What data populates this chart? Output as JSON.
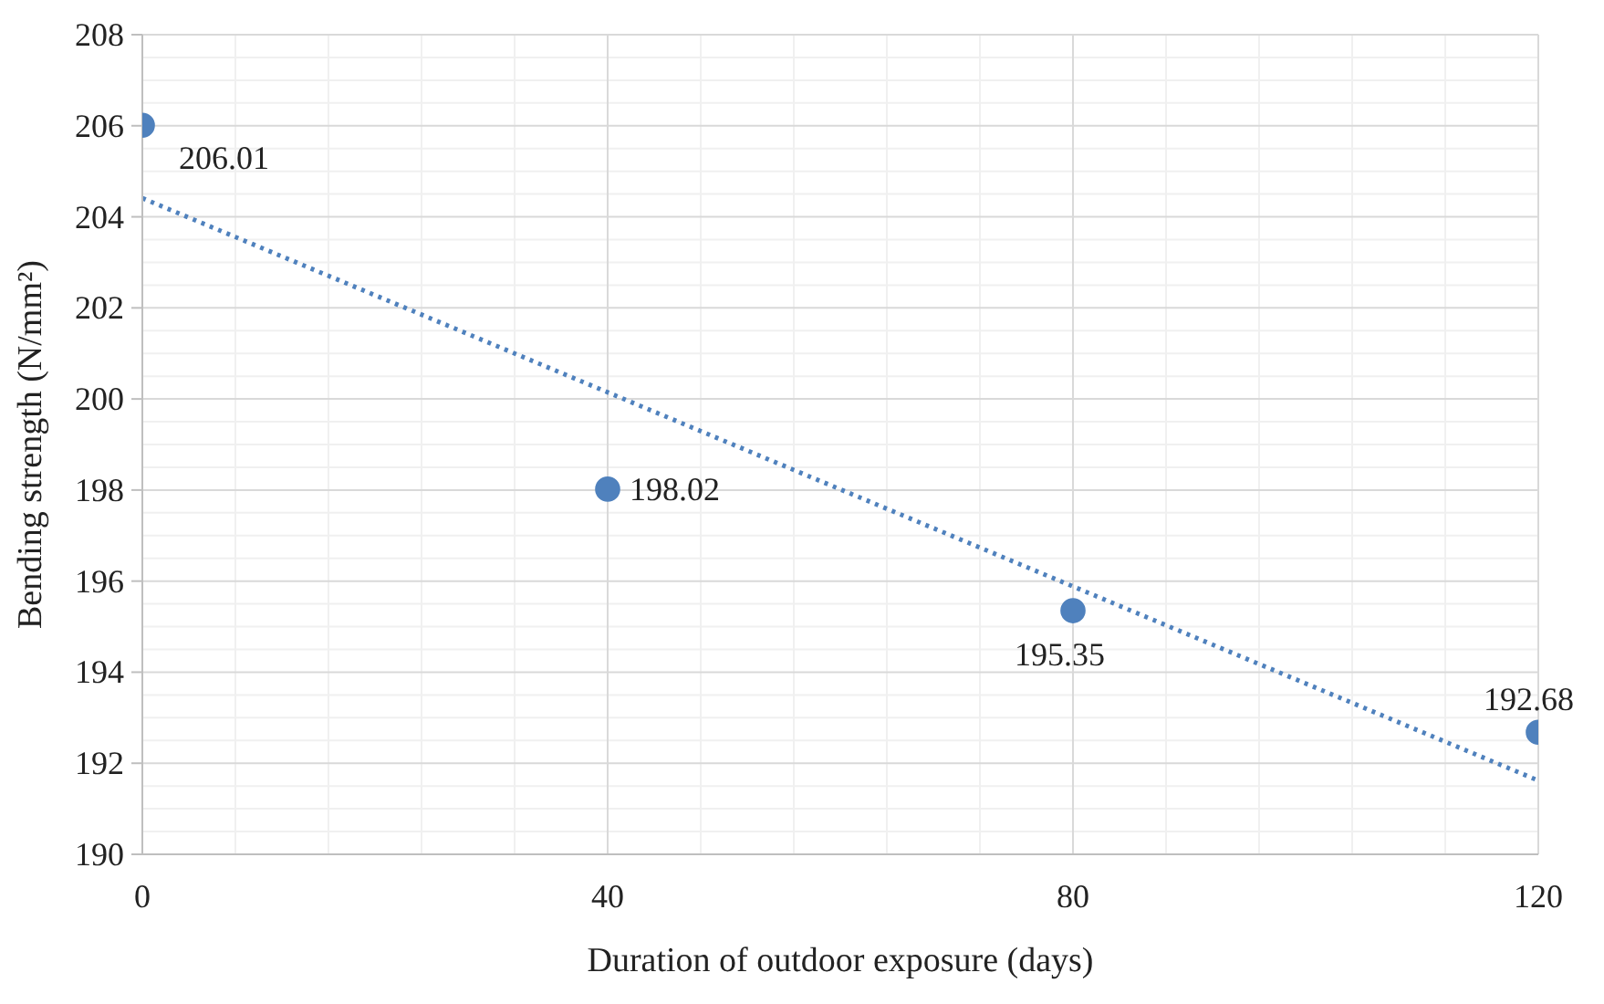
{
  "chart_data": {
    "type": "scatter",
    "xlabel": "Duration of outdoor exposure (days)",
    "ylabel": "Bending strength (N/mm²)",
    "x": [
      0,
      40,
      80,
      120
    ],
    "series": [
      {
        "color": "#4f81bd",
        "values": [
          206.01,
          198.02,
          195.35,
          192.68
        ],
        "value_labels": [
          "206.01",
          "198.02",
          "195.35",
          "192.68"
        ],
        "marker": "circle"
      },
      {
        "type": "line",
        "color": "#4f81bd",
        "x": [
          0,
          120
        ],
        "values": [
          204.41,
          191.62
        ],
        "line_style": "dotted",
        "marker": "none"
      }
    ],
    "xlim": [
      0,
      120
    ],
    "xticks": [
      0,
      {
        "value": 8,
        "label": null
      },
      {
        "value": 16,
        "label": null
      },
      {
        "value": 24,
        "label": null
      },
      {
        "value": 32,
        "label": null
      },
      40,
      {
        "value": 48,
        "label": null
      },
      {
        "value": 56,
        "label": null
      },
      {
        "value": 64,
        "label": null
      },
      {
        "value": 72,
        "label": null
      },
      80,
      {
        "value": 88,
        "label": null
      },
      {
        "value": 96,
        "label": null
      },
      {
        "value": 104,
        "label": null
      },
      {
        "value": 112,
        "label": null
      },
      120
    ],
    "ylim": [
      190,
      208
    ],
    "yticks": [
      190,
      {
        "value": 190.5,
        "label": null
      },
      {
        "value": 191,
        "label": null
      },
      {
        "value": 191.5,
        "label": null
      },
      192,
      {
        "value": 192.5,
        "label": null
      },
      {
        "value": 193,
        "label": null
      },
      {
        "value": 193.5,
        "label": null
      },
      194,
      {
        "value": 194.5,
        "label": null
      },
      {
        "value": 195,
        "label": null
      },
      {
        "value": 195.5,
        "label": null
      },
      196,
      {
        "value": 196.5,
        "label": null
      },
      {
        "value": 197,
        "label": null
      },
      {
        "value": 197.5,
        "label": null
      },
      198,
      {
        "value": 198.5,
        "label": null
      },
      {
        "value": 199,
        "label": null
      },
      {
        "value": 199.5,
        "label": null
      },
      200,
      {
        "value": 200.5,
        "label": null
      },
      {
        "value": 201,
        "label": null
      },
      {
        "value": 201.5,
        "label": null
      },
      202,
      {
        "value": 202.5,
        "label": null
      },
      {
        "value": 203,
        "label": null
      },
      {
        "value": 203.5,
        "label": null
      },
      204,
      {
        "value": 204.5,
        "label": null
      },
      {
        "value": 205,
        "label": null
      },
      {
        "value": 205.5,
        "label": null
      },
      206,
      {
        "value": 206.5,
        "label": null
      },
      {
        "value": 207,
        "label": null
      },
      {
        "value": 207.5,
        "label": null
      },
      208
    ],
    "grid": true
  }
}
